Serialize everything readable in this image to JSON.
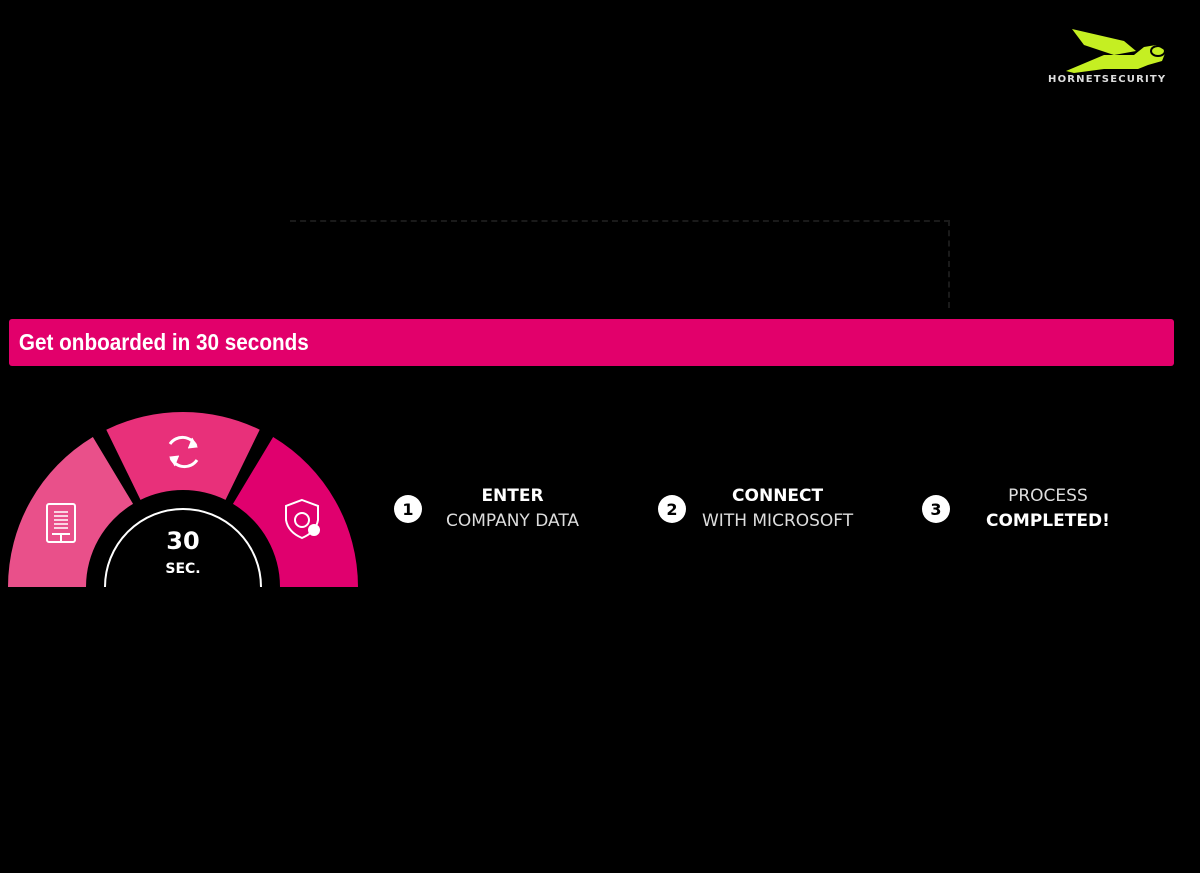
{
  "brand": {
    "name": "HORNETSECURITY",
    "color": "#c5ef22"
  },
  "banner": {
    "title": "Get onboarded in 30 seconds",
    "color": "#e2006b"
  },
  "gauge": {
    "value": "30",
    "unit": "SEC.",
    "segments": [
      {
        "icon": "tablet-document-icon",
        "color": "#e9508a"
      },
      {
        "icon": "sync-icon",
        "color": "#e8307a"
      },
      {
        "icon": "shield-365-check-icon",
        "color": "#e0006e"
      }
    ]
  },
  "steps": [
    {
      "number": "1",
      "line1": "ENTER",
      "line2": "COMPANY DATA",
      "bold": "line1"
    },
    {
      "number": "2",
      "line1": "CONNECT",
      "line2": "WITH MICROSOFT",
      "bold": "line1"
    },
    {
      "number": "3",
      "line1": "PROCESS",
      "line2": "COMPLETED!",
      "bold": "line2"
    }
  ]
}
